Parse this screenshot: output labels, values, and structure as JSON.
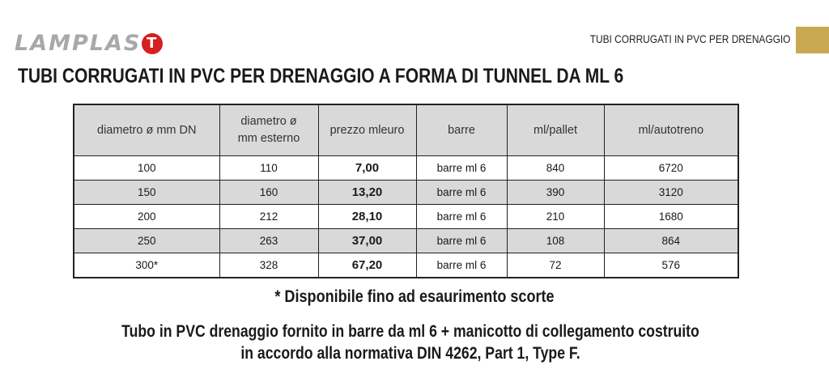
{
  "brand": {
    "logo_text": "LAMPLAS",
    "logo_mark": "T",
    "accent": "#d42020",
    "gold": "#c9a952"
  },
  "header": {
    "section": "TUBI CORRUGATI IN PVC PER DRENAGGIO",
    "title": "TUBI CORRUGATI IN PVC PER DRENAGGIO A FORMA DI TUNNEL DA ML 6"
  },
  "table": {
    "headers": [
      "diametro ø mm DN",
      "diametro ø mm esterno",
      "prezzo mleuro",
      "barre",
      "ml/pallet",
      "ml/autotreno"
    ],
    "rows": [
      [
        "100",
        "110",
        "7,00",
        "barre ml 6",
        "840",
        "6720"
      ],
      [
        "150",
        "160",
        "13,20",
        "barre ml 6",
        "390",
        "3120"
      ],
      [
        "200",
        "212",
        "28,10",
        "barre ml 6",
        "210",
        "1680"
      ],
      [
        "250",
        "263",
        "37,00",
        "barre ml 6",
        "108",
        "864"
      ],
      [
        "300*",
        "328",
        "67,20",
        "barre ml 6",
        "72",
        "576"
      ]
    ]
  },
  "note": "* Disponibile fino ad esaurimento scorte",
  "description": [
    "Tubo in PVC drenaggio fornito in barre da ml 6 + manicotto di collegamento costruito",
    "in accordo alla normativa DIN 4262, Part 1, Type F."
  ]
}
